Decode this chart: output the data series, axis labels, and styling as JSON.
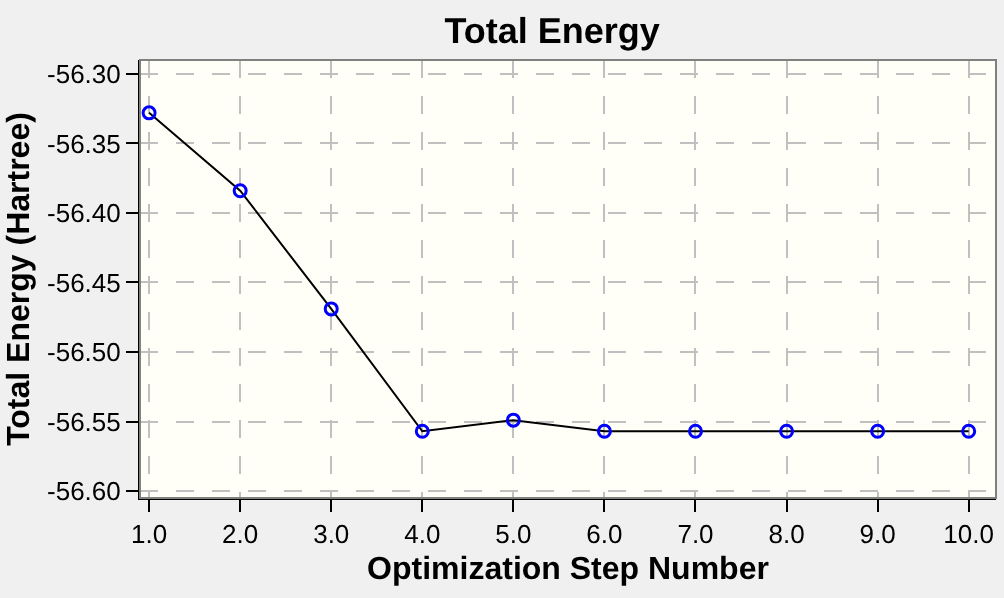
{
  "chart_data": {
    "type": "line",
    "title": "Total Energy",
    "xlabel": "Optimization Step Number",
    "ylabel": "Total Energy (Hartree)",
    "x": [
      1,
      2,
      3,
      4,
      5,
      6,
      7,
      8,
      9,
      10
    ],
    "series": [
      {
        "color": "#0000ff",
        "values": [
          -56.328,
          -56.384,
          -56.469,
          -56.557,
          -56.549,
          -56.557,
          -56.557,
          -56.557,
          -56.557,
          -56.557
        ]
      }
    ],
    "xlim": [
      0.9,
      10.3
    ],
    "ylim": [
      -56.605,
      -56.29
    ],
    "xticks": [
      {
        "value": 1,
        "label": "1.0"
      },
      {
        "value": 2,
        "label": "2.0"
      },
      {
        "value": 3,
        "label": "3.0"
      },
      {
        "value": 4,
        "label": "4.0"
      },
      {
        "value": 5,
        "label": "5.0"
      },
      {
        "value": 6,
        "label": "6.0"
      },
      {
        "value": 7,
        "label": "7.0"
      },
      {
        "value": 8,
        "label": "8.0"
      },
      {
        "value": 9,
        "label": "9.0"
      },
      {
        "value": 10,
        "label": "10.0"
      }
    ],
    "yticks": [
      {
        "value": -56.3,
        "label": "-56.30"
      },
      {
        "value": -56.35,
        "label": "-56.35"
      },
      {
        "value": -56.4,
        "label": "-56.40"
      },
      {
        "value": -56.45,
        "label": "-56.45"
      },
      {
        "value": -56.5,
        "label": "-56.50"
      },
      {
        "value": -56.55,
        "label": "-56.55"
      },
      {
        "value": -56.6,
        "label": "-56.60"
      }
    ],
    "grid": true,
    "marker": "circle",
    "line_style": "solid"
  }
}
